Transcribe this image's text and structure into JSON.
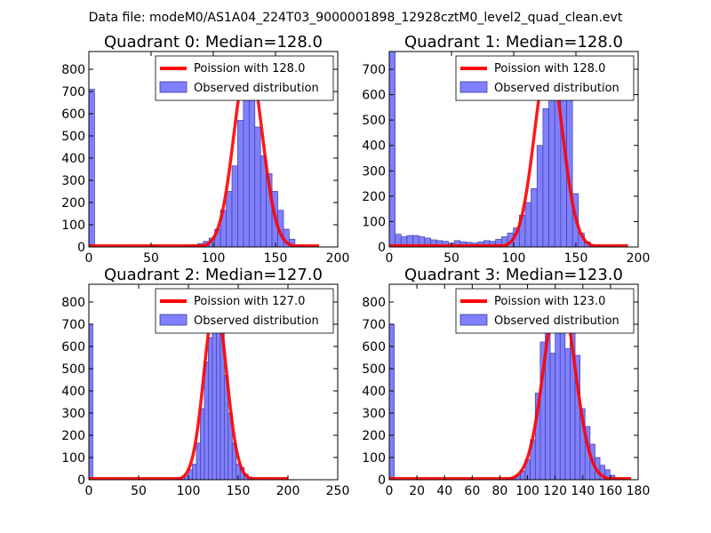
{
  "suptitle": "Data file: modeM0/AS1A04_224T03_9000001898_12928cztM0_level2_quad_clean.evt",
  "colors": {
    "bar_fill": "#8080ff",
    "bar_edge": "#3c3ca0",
    "poisson": "#ff0000"
  },
  "chart_data": [
    {
      "type": "bar",
      "title": "Quadrant 0: Median=128.0",
      "xlim": [
        0,
        200
      ],
      "ylim": [
        0,
        880
      ],
      "xticks": [
        0,
        50,
        100,
        150,
        200
      ],
      "yticks": [
        0,
        100,
        200,
        300,
        400,
        500,
        600,
        700,
        800
      ],
      "bin_width": 4.6,
      "bin_starts": [
        0,
        23,
        51,
        74,
        78.2,
        82.8,
        87.4,
        92,
        96.6,
        101.2,
        105.8,
        110.4,
        115,
        119.6,
        124.2,
        128.8,
        133.4,
        138,
        142.6,
        147.2,
        151.8,
        156.4,
        161,
        165.6,
        170.2
      ],
      "values": [
        710,
        3,
        8,
        3,
        5,
        10,
        15,
        25,
        40,
        80,
        165,
        250,
        365,
        570,
        810,
        680,
        540,
        410,
        330,
        250,
        165,
        80,
        35,
        8,
        3
      ],
      "poisson_mean": 128.0,
      "poisson_peak": 845,
      "poisson_x": [
        0,
        185
      ],
      "legend": [
        "Poission with 128.0",
        "Observed distribution"
      ]
    },
    {
      "type": "bar",
      "title": "Quadrant 1: Median=128.0",
      "xlim": [
        0,
        200
      ],
      "ylim": [
        0,
        770
      ],
      "xticks": [
        0,
        50,
        100,
        150,
        200
      ],
      "yticks": [
        0,
        100,
        200,
        300,
        400,
        500,
        600,
        700
      ],
      "bin_width": 4.75,
      "bin_starts": [
        0,
        4.75,
        9.5,
        14.25,
        19,
        23.75,
        28.5,
        33.25,
        38,
        42.75,
        47.5,
        52.25,
        57,
        61.75,
        66.5,
        71.25,
        76,
        80.75,
        85.5,
        90.25,
        95,
        99.75,
        104.5,
        109.25,
        114,
        118.75,
        123.5,
        128.25,
        133,
        137.75,
        142.5,
        147.25,
        152,
        156.75,
        161.5,
        166.25,
        171,
        175.75,
        180.5
      ],
      "values": [
        770,
        50,
        40,
        45,
        45,
        40,
        35,
        28,
        25,
        22,
        15,
        25,
        20,
        18,
        15,
        20,
        25,
        22,
        30,
        40,
        55,
        75,
        125,
        175,
        230,
        400,
        545,
        720,
        695,
        600,
        580,
        210,
        55,
        20,
        8,
        5,
        3,
        2,
        1
      ],
      "poisson_mean": 128.0,
      "poisson_peak": 740,
      "poisson_x": [
        0,
        192
      ],
      "legend": [
        "Poission with 128.0",
        "Observed distribution"
      ]
    },
    {
      "type": "bar",
      "title": "Quadrant 2: Median=127.0",
      "xlim": [
        0,
        250
      ],
      "ylim": [
        0,
        880
      ],
      "xticks": [
        0,
        50,
        100,
        150,
        200,
        250
      ],
      "yticks": [
        0,
        100,
        200,
        300,
        400,
        500,
        600,
        700,
        800
      ],
      "bin_width": 4.0,
      "bin_starts": [
        0,
        84,
        88,
        92,
        96,
        100,
        104,
        108,
        112,
        116,
        120,
        124,
        128,
        132,
        136,
        140,
        144,
        148,
        152,
        156,
        160,
        164,
        168
      ],
      "values": [
        700,
        3,
        5,
        10,
        20,
        45,
        70,
        165,
        320,
        530,
        640,
        760,
        820,
        680,
        470,
        300,
        165,
        70,
        55,
        25,
        12,
        5,
        2
      ],
      "poisson_mean": 127.0,
      "poisson_peak": 800,
      "poisson_x": [
        0,
        200
      ],
      "legend": [
        "Poission with 127.0",
        "Observed distribution"
      ]
    },
    {
      "type": "bar",
      "title": "Quadrant 3: Median=123.0",
      "xlim": [
        0,
        180
      ],
      "ylim": [
        0,
        880
      ],
      "xticks": [
        0,
        20,
        40,
        60,
        80,
        100,
        120,
        140,
        160,
        180
      ],
      "yticks": [
        0,
        100,
        200,
        300,
        400,
        500,
        600,
        700,
        800
      ],
      "bin_width": 3.6,
      "bin_starts": [
        0,
        84,
        87.6,
        91.2,
        94.8,
        98.4,
        102,
        105.6,
        109.2,
        112.8,
        116.4,
        120,
        123.6,
        127.2,
        130.8,
        134.4,
        138,
        141.6,
        145.2,
        148.8,
        152.4,
        156,
        159.6,
        163.2,
        166.8
      ],
      "values": [
        700,
        5,
        10,
        20,
        40,
        90,
        180,
        390,
        620,
        760,
        570,
        860,
        830,
        590,
        780,
        560,
        320,
        240,
        160,
        100,
        65,
        45,
        20,
        8,
        3
      ],
      "poisson_mean": 123.0,
      "poisson_peak": 855,
      "poisson_x": [
        0,
        175
      ],
      "legend": [
        "Poission with 123.0",
        "Observed distribution"
      ]
    }
  ]
}
